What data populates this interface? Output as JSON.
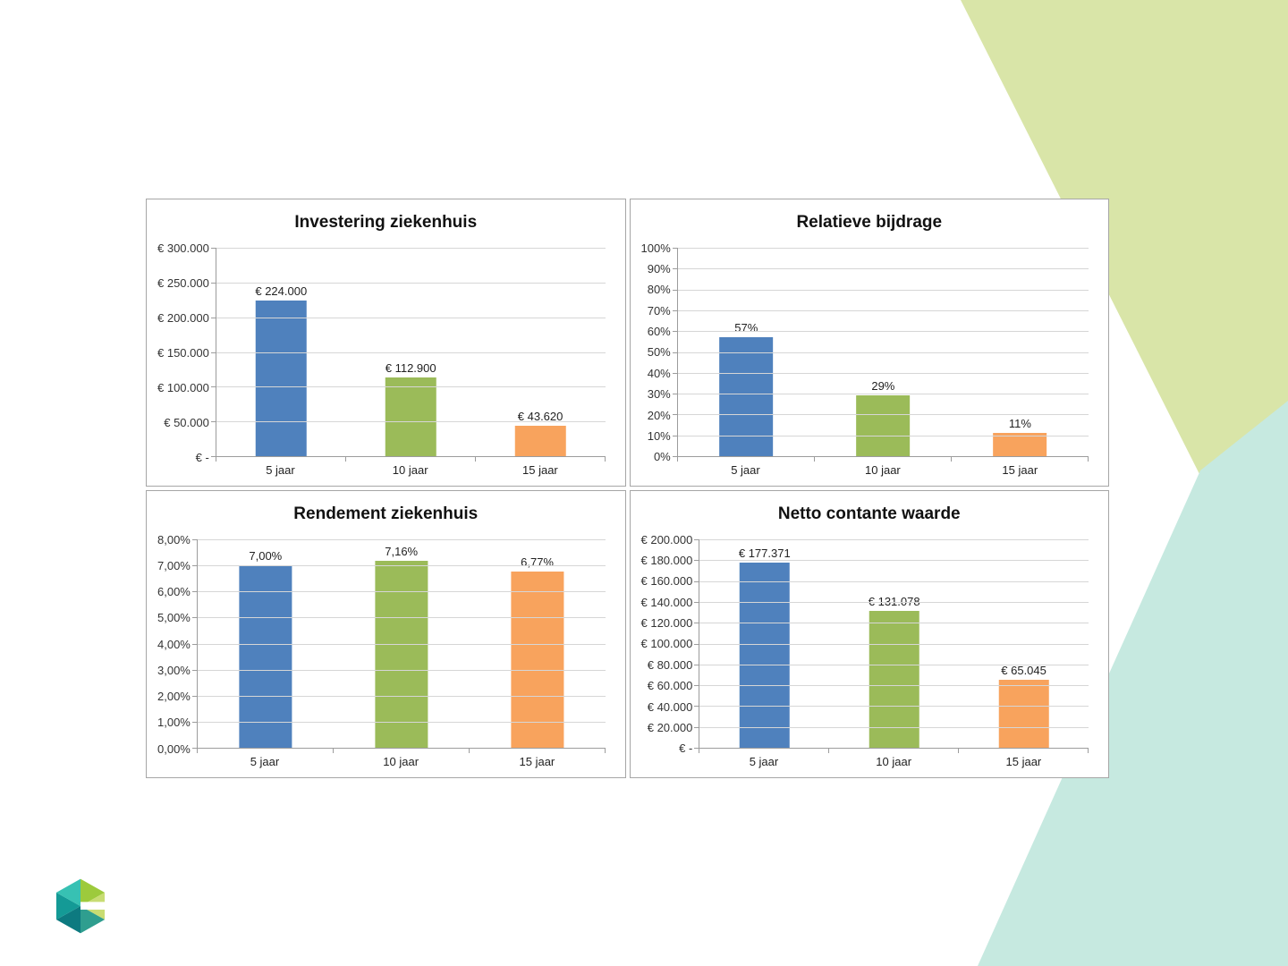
{
  "slide": {
    "background": "#ffffff",
    "logo": "hexagon-g-logo"
  },
  "colors": {
    "series": [
      "#4f81bd",
      "#9bbb59",
      "#f8a35d"
    ],
    "gridline": "#d6d6d6",
    "axis": "#9c9c9c",
    "panel_border": "#a6a6a6",
    "background_shape_green": "#d9e5a8",
    "background_shape_teal": "#c6e9e0"
  },
  "chart_data": [
    {
      "type": "bar",
      "title": "Investering ziekenhuis",
      "categories": [
        "5 jaar",
        "10 jaar",
        "15 jaar"
      ],
      "values": [
        224000,
        112900,
        43620
      ],
      "value_labels": [
        "€ 224.000",
        "€ 112.900",
        "€ 43.620"
      ],
      "ylim": [
        0,
        300000
      ],
      "y_ticks_top_to_bottom": [
        "€ 300.000",
        "€ 250.000",
        "€ 200.000",
        "€ 150.000",
        "€ 100.000",
        "€ 50.000",
        "€ -"
      ],
      "grid": true,
      "legend": "none"
    },
    {
      "type": "bar",
      "title": "Relatieve bijdrage",
      "categories": [
        "5 jaar",
        "10 jaar",
        "15 jaar"
      ],
      "values": [
        57,
        29,
        11
      ],
      "value_labels": [
        "57%",
        "29%",
        "11%"
      ],
      "ylim": [
        0,
        100
      ],
      "y_ticks_top_to_bottom": [
        "100%",
        "90%",
        "80%",
        "70%",
        "60%",
        "50%",
        "40%",
        "30%",
        "20%",
        "10%",
        "0%"
      ],
      "grid": true,
      "legend": "none"
    },
    {
      "type": "bar",
      "title": "Rendement ziekenhuis",
      "categories": [
        "5 jaar",
        "10 jaar",
        "15 jaar"
      ],
      "values": [
        7.0,
        7.16,
        6.77
      ],
      "value_labels": [
        "7,00%",
        "7,16%",
        "6,77%"
      ],
      "ylim": [
        0,
        8
      ],
      "y_ticks_top_to_bottom": [
        "8,00%",
        "7,00%",
        "6,00%",
        "5,00%",
        "4,00%",
        "3,00%",
        "2,00%",
        "1,00%",
        "0,00%"
      ],
      "grid": true,
      "legend": "none"
    },
    {
      "type": "bar",
      "title": "Netto contante waarde",
      "categories": [
        "5 jaar",
        "10 jaar",
        "15 jaar"
      ],
      "values": [
        177371,
        131078,
        65045
      ],
      "value_labels": [
        "€ 177.371",
        "€ 131.078",
        "€ 65.045"
      ],
      "ylim": [
        0,
        200000
      ],
      "y_ticks_top_to_bottom": [
        "€ 200.000",
        "€ 180.000",
        "€ 160.000",
        "€ 140.000",
        "€ 120.000",
        "€ 100.000",
        "€ 80.000",
        "€ 60.000",
        "€ 40.000",
        "€ 20.000",
        "€ -"
      ],
      "grid": true,
      "legend": "none"
    }
  ]
}
